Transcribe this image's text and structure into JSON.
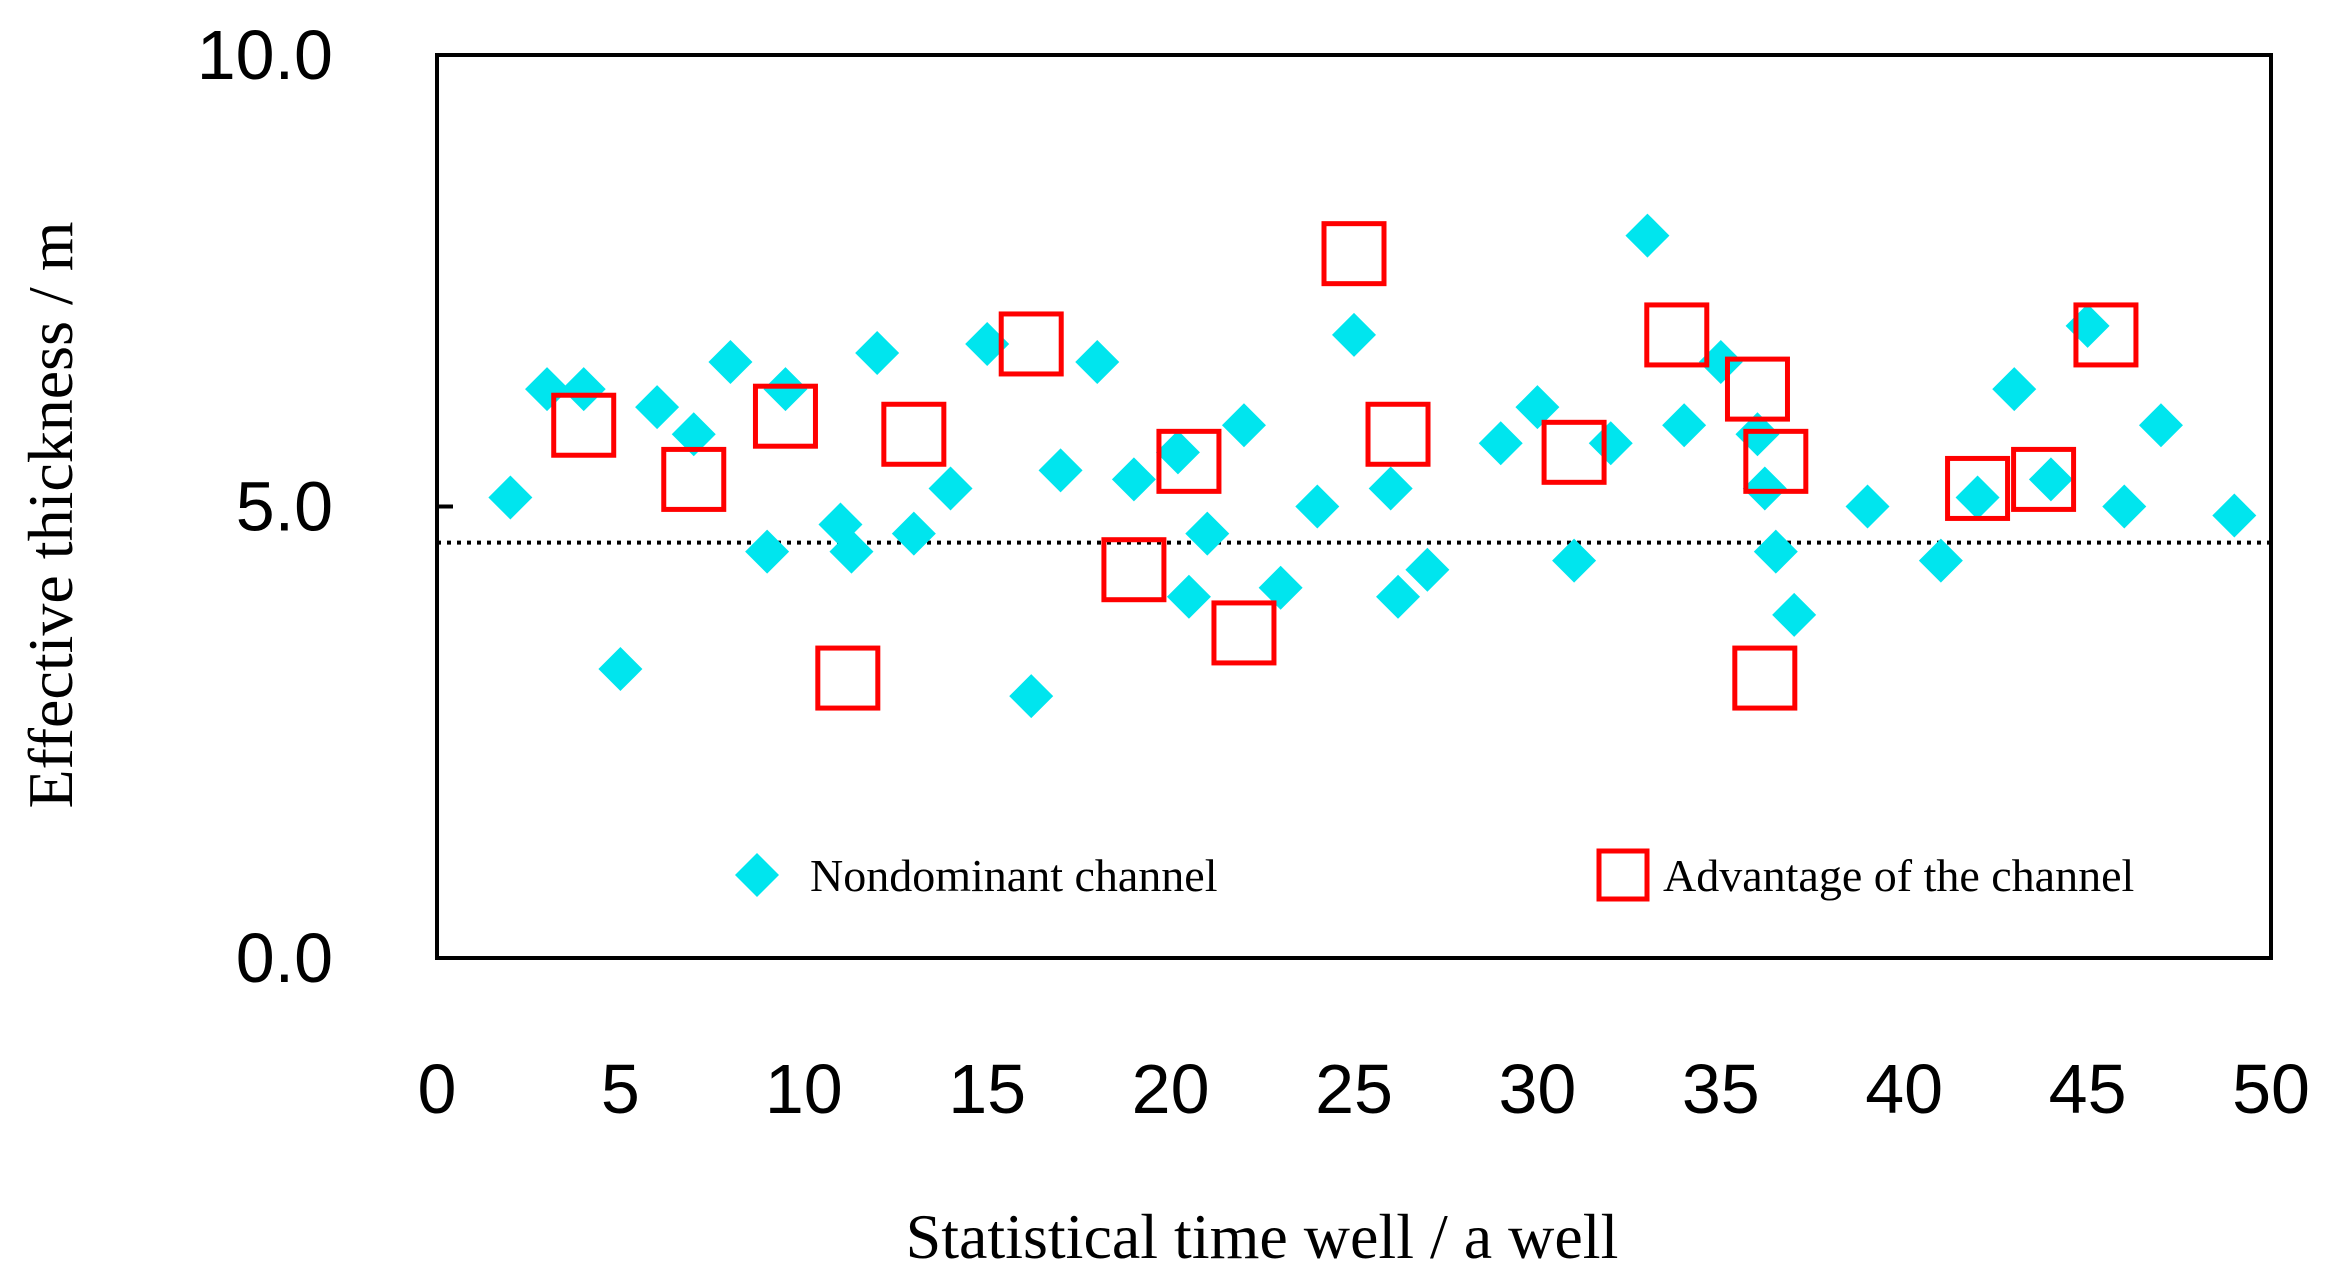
{
  "chart_data": {
    "type": "scatter",
    "title": "",
    "xlabel": "Statistical time well / a well",
    "ylabel": "Effective thickness / m",
    "xlim": [
      0,
      50
    ],
    "ylim": [
      0,
      10
    ],
    "x_ticks": [
      0,
      5,
      10,
      15,
      20,
      25,
      30,
      35,
      40,
      45,
      50
    ],
    "x_tick_labels": [
      "0",
      "5",
      "10",
      "15",
      "20",
      "25",
      "30",
      "35",
      "40",
      "45",
      "50"
    ],
    "y_ticks": [
      0,
      5,
      10
    ],
    "y_tick_labels": [
      "0.0",
      "5.0",
      "10.0"
    ],
    "reference_line": {
      "y": 4.6,
      "style": "dotted"
    },
    "legend_position": "bottom",
    "series": [
      {
        "name": "Nondominant channel",
        "marker": "diamond",
        "color": "#00E5EE",
        "points": [
          {
            "x": 2,
            "y": 5.1
          },
          {
            "x": 3,
            "y": 6.3
          },
          {
            "x": 4,
            "y": 6.3
          },
          {
            "x": 5,
            "y": 3.2
          },
          {
            "x": 6,
            "y": 6.1
          },
          {
            "x": 7,
            "y": 5.8
          },
          {
            "x": 8,
            "y": 6.6
          },
          {
            "x": 9,
            "y": 4.5
          },
          {
            "x": 9.5,
            "y": 6.3
          },
          {
            "x": 11,
            "y": 4.8
          },
          {
            "x": 11.3,
            "y": 4.5
          },
          {
            "x": 12,
            "y": 6.7
          },
          {
            "x": 13,
            "y": 4.7
          },
          {
            "x": 14,
            "y": 5.2
          },
          {
            "x": 15,
            "y": 6.8
          },
          {
            "x": 16.2,
            "y": 2.9
          },
          {
            "x": 17,
            "y": 5.4
          },
          {
            "x": 18,
            "y": 6.6
          },
          {
            "x": 19,
            "y": 5.3
          },
          {
            "x": 20.2,
            "y": 5.6
          },
          {
            "x": 20.5,
            "y": 4.0
          },
          {
            "x": 21,
            "y": 4.7
          },
          {
            "x": 22,
            "y": 5.9
          },
          {
            "x": 23,
            "y": 4.1
          },
          {
            "x": 24,
            "y": 5.0
          },
          {
            "x": 25,
            "y": 6.9
          },
          {
            "x": 26,
            "y": 5.2
          },
          {
            "x": 26.2,
            "y": 4.0
          },
          {
            "x": 27,
            "y": 4.3
          },
          {
            "x": 29,
            "y": 5.7
          },
          {
            "x": 30,
            "y": 6.1
          },
          {
            "x": 31,
            "y": 4.4
          },
          {
            "x": 32,
            "y": 5.7
          },
          {
            "x": 33,
            "y": 8.0
          },
          {
            "x": 34,
            "y": 5.9
          },
          {
            "x": 35,
            "y": 6.6
          },
          {
            "x": 36,
            "y": 5.8
          },
          {
            "x": 36.2,
            "y": 5.2
          },
          {
            "x": 36.5,
            "y": 4.5
          },
          {
            "x": 37,
            "y": 3.8
          },
          {
            "x": 39,
            "y": 5.0
          },
          {
            "x": 41,
            "y": 4.4
          },
          {
            "x": 42,
            "y": 5.1
          },
          {
            "x": 43,
            "y": 6.3
          },
          {
            "x": 44,
            "y": 5.3
          },
          {
            "x": 45,
            "y": 7.0
          },
          {
            "x": 46,
            "y": 5.0
          },
          {
            "x": 47,
            "y": 5.9
          },
          {
            "x": 49,
            "y": 4.9
          }
        ]
      },
      {
        "name": "Advantage of the channel",
        "marker": "square-open",
        "color": "#FF0000",
        "points": [
          {
            "x": 4,
            "y": 5.9
          },
          {
            "x": 7,
            "y": 5.3
          },
          {
            "x": 9.5,
            "y": 6.0
          },
          {
            "x": 11.2,
            "y": 3.1
          },
          {
            "x": 13,
            "y": 5.8
          },
          {
            "x": 16.2,
            "y": 6.8
          },
          {
            "x": 19,
            "y": 4.3
          },
          {
            "x": 20.5,
            "y": 5.5
          },
          {
            "x": 22,
            "y": 3.6
          },
          {
            "x": 25,
            "y": 7.8
          },
          {
            "x": 26.2,
            "y": 5.8
          },
          {
            "x": 31,
            "y": 5.6
          },
          {
            "x": 33.8,
            "y": 6.9
          },
          {
            "x": 36,
            "y": 6.3
          },
          {
            "x": 36.2,
            "y": 3.1
          },
          {
            "x": 36.5,
            "y": 5.5
          },
          {
            "x": 42,
            "y": 5.2
          },
          {
            "x": 43.8,
            "y": 5.3
          },
          {
            "x": 45.5,
            "y": 6.9
          }
        ]
      }
    ]
  }
}
